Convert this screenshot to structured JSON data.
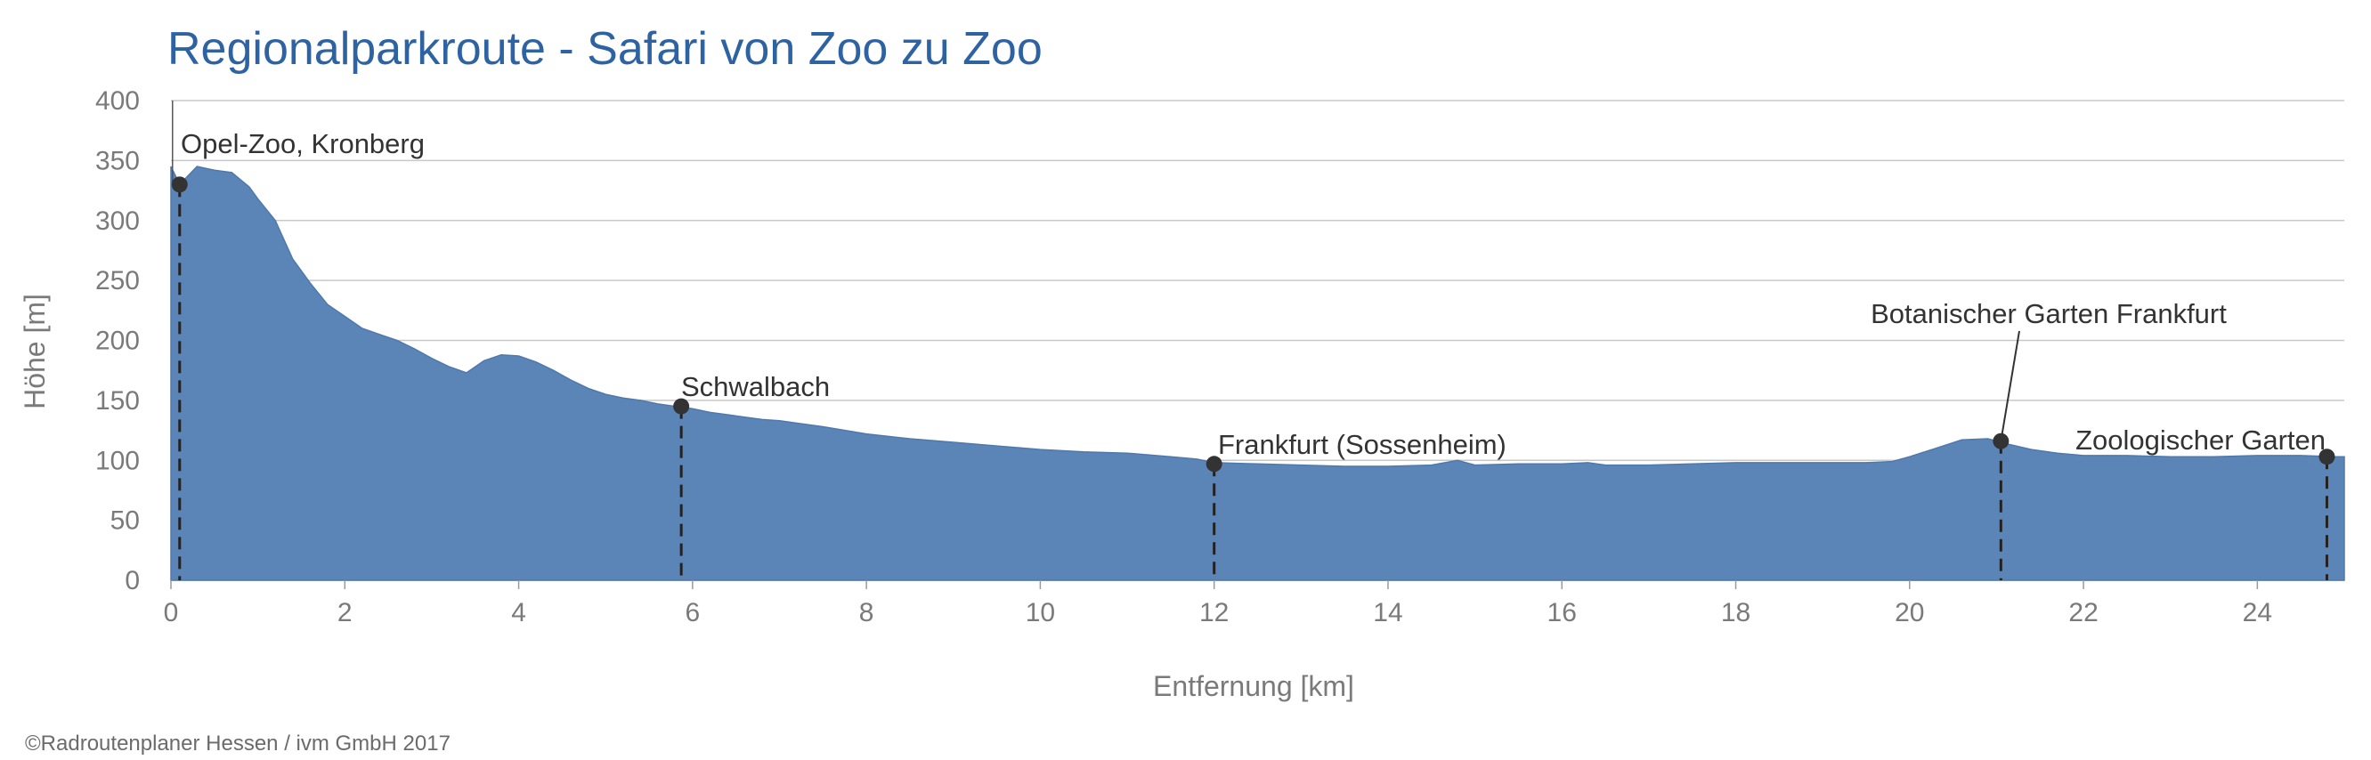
{
  "title": "Regionalparkroute - Safari von Zoo zu Zoo",
  "credit": "©Radroutenplaner Hessen / ivm GmbH 2017",
  "colors": {
    "title": "#2e63a3",
    "area": "#5b85b7",
    "grid": "#c8c8c8",
    "text": "#333333",
    "axis_text": "#7a7a7a"
  },
  "chart_data": {
    "type": "area",
    "xlabel": "Entfernung [km]",
    "ylabel": "Höhe [m]",
    "xlim": [
      0,
      25
    ],
    "ylim": [
      0,
      400
    ],
    "xticks": [
      0,
      2,
      4,
      6,
      8,
      10,
      12,
      14,
      16,
      18,
      20,
      22,
      24
    ],
    "yticks": [
      0,
      50,
      100,
      150,
      200,
      250,
      300,
      350,
      400
    ],
    "grid": "horizontal",
    "x": [
      0.0,
      0.1,
      0.3,
      0.5,
      0.7,
      0.9,
      1.0,
      1.2,
      1.4,
      1.6,
      1.8,
      2.0,
      2.2,
      2.4,
      2.6,
      2.8,
      3.0,
      3.2,
      3.4,
      3.6,
      3.8,
      4.0,
      4.2,
      4.4,
      4.6,
      4.8,
      5.0,
      5.2,
      5.4,
      5.6,
      5.8,
      6.0,
      6.2,
      6.4,
      6.6,
      6.8,
      7.0,
      7.2,
      7.5,
      8.0,
      8.5,
      9.0,
      9.5,
      10.0,
      10.5,
      11.0,
      11.5,
      11.8,
      12.0,
      12.5,
      13.0,
      13.5,
      14.0,
      14.5,
      14.8,
      15.0,
      15.5,
      16.0,
      16.3,
      16.5,
      17.0,
      17.5,
      18.0,
      18.5,
      19.0,
      19.5,
      19.8,
      20.0,
      20.3,
      20.6,
      20.9,
      21.1,
      21.4,
      21.7,
      22.0,
      22.5,
      23.0,
      23.5,
      24.0,
      24.5,
      24.9,
      25.0
    ],
    "y": [
      345,
      330,
      345,
      342,
      340,
      328,
      318,
      300,
      268,
      248,
      230,
      220,
      210,
      205,
      200,
      193,
      185,
      178,
      173,
      183,
      188,
      187,
      182,
      175,
      167,
      160,
      155,
      152,
      150,
      147,
      145,
      143,
      140,
      138,
      136,
      134,
      133,
      131,
      128,
      122,
      118,
      115,
      112,
      109,
      107,
      106,
      103,
      101,
      98,
      97,
      96,
      95,
      95,
      96,
      100,
      96,
      97,
      97,
      98,
      96,
      96,
      97,
      98,
      98,
      98,
      98,
      99,
      103,
      110,
      117,
      118,
      114,
      109,
      106,
      104,
      104,
      103,
      103,
      104,
      104,
      103,
      103
    ],
    "markers": [
      {
        "label": "Opel-Zoo, Kronberg",
        "x": 0.1,
        "y": 330
      },
      {
        "label": "Schwalbach",
        "x": 5.87,
        "y": 145
      },
      {
        "label": "Frankfurt (Sossenheim)",
        "x": 12.0,
        "y": 97
      },
      {
        "label": "Botanischer Garten Frankfurt",
        "x": 21.05,
        "y": 116
      },
      {
        "label": "Zoologischer Garten",
        "x": 24.8,
        "y": 103
      }
    ]
  }
}
